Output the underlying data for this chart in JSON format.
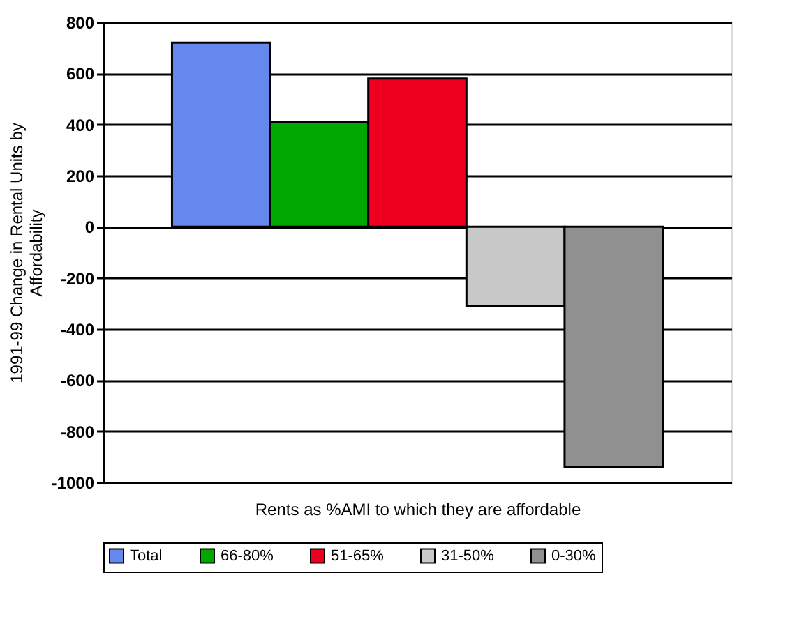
{
  "chart_data": {
    "type": "bar",
    "xlabel": "Rents as %AMI to which they are affordable",
    "ylabel": "1991-99 Change in Rental Units by Affordability",
    "categories": [
      null
    ],
    "series": [
      {
        "name": "Total",
        "color": "#6688ee",
        "values": [
          720
        ]
      },
      {
        "name": "66-80%",
        "color": "#00a800",
        "values": [
          410
        ]
      },
      {
        "name": "51-65%",
        "color": "#f00020",
        "values": [
          580
        ]
      },
      {
        "name": "31-50%",
        "color": "#c8c8c8",
        "values": [
          -310
        ]
      },
      {
        "name": "0-30%",
        "color": "#909090",
        "values": [
          -940
        ]
      }
    ],
    "ylim": [
      -1000,
      800
    ],
    "yticks": [
      -1000,
      -800,
      -600,
      -400,
      -200,
      0,
      200,
      400,
      600,
      800
    ],
    "grid": "y",
    "legend": "bottom"
  }
}
